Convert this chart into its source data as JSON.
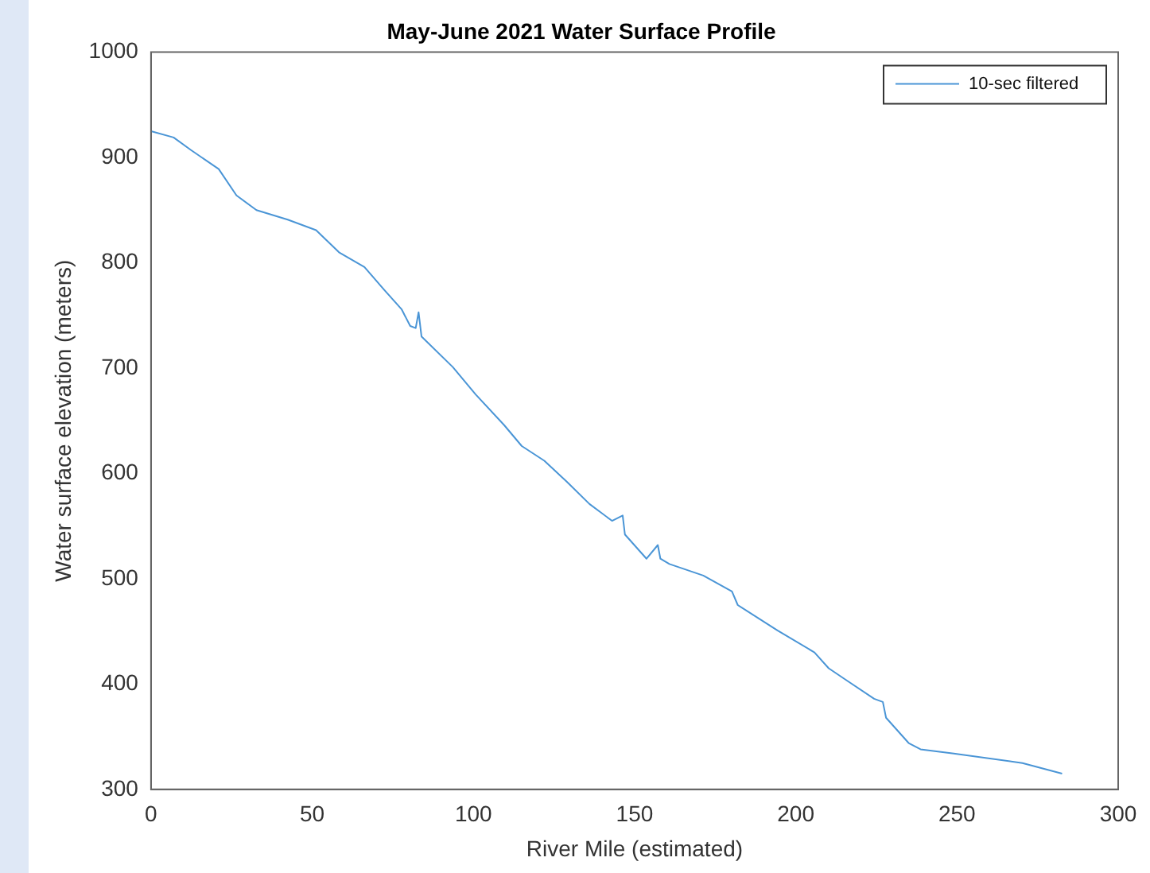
{
  "chart_data": {
    "type": "line",
    "title": "May-June 2021 Water Surface Profile",
    "xlabel": "River Mile (estimated)",
    "ylabel": "Water surface elevation (meters)",
    "xlim": [
      0,
      300
    ],
    "xticks": [
      0,
      50,
      100,
      150,
      200,
      250,
      300
    ],
    "ylim": [
      300,
      1000
    ],
    "yticks": [
      300,
      400,
      500,
      600,
      700,
      800,
      900,
      1000
    ],
    "grid": false,
    "legend": "top right",
    "marker": "none",
    "line_style": "solid",
    "series": [
      {
        "name": "10-sec filtered",
        "color": "#4a95d6",
        "x": [
          0,
          7,
          12.4,
          21,
          26.5,
          32.7,
          42.4,
          51.2,
          58.3,
          66.2,
          72.4,
          77.7,
          80.4,
          82.1,
          83,
          83.9,
          93.6,
          100.7,
          109.5,
          115,
          122,
          129,
          136,
          143,
          146.3,
          147,
          153.7,
          157.2,
          158,
          160.8,
          171.3,
          180.2,
          182,
          194.3,
          205.8,
          210.2,
          215.5,
          224.3,
          227,
          228,
          235,
          238.7,
          249,
          270.3,
          282.6
        ],
        "values": [
          925,
          919,
          907,
          889,
          864,
          850,
          841,
          831,
          810,
          796,
          774,
          756,
          740,
          738,
          753,
          730,
          701,
          675,
          646,
          626,
          612,
          592,
          571,
          555,
          560,
          542,
          519,
          532,
          519,
          514,
          503,
          488,
          475,
          451,
          430,
          415,
          404,
          386,
          383,
          368,
          344,
          338,
          334,
          325,
          315
        ]
      }
    ]
  }
}
